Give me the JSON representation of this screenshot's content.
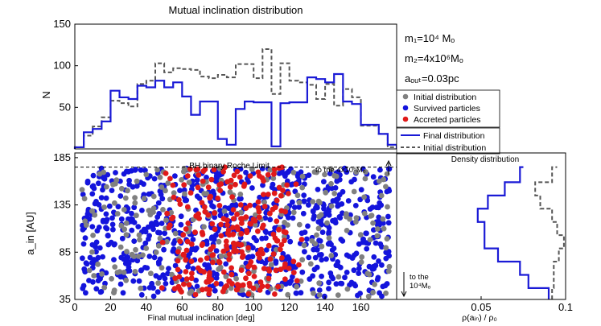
{
  "chart_data": [
    {
      "id": "hist",
      "type": "step",
      "title": "Mutual inclination distribution",
      "ylabel": "N",
      "xlim": [
        0,
        180
      ],
      "ylim": [
        0,
        150
      ],
      "yticks": [
        50,
        100,
        150
      ],
      "bin_width": 5,
      "series": [
        {
          "name": "Final distribution",
          "color": "#1a1ad6",
          "style": "solid",
          "values": [
            2,
            20,
            24,
            33,
            70,
            62,
            60,
            76,
            74,
            82,
            74,
            80,
            63,
            41,
            57,
            57,
            12,
            5,
            48,
            57,
            56,
            56,
            3,
            55,
            56,
            56,
            86,
            84,
            80,
            90,
            57,
            54,
            29,
            29,
            18,
            5
          ]
        },
        {
          "name": "Initial distribution",
          "color": "#555555",
          "style": "dashed",
          "values": [
            2,
            16,
            27,
            38,
            58,
            55,
            51,
            78,
            82,
            103,
            92,
            97,
            96,
            95,
            87,
            85,
            89,
            86,
            102,
            102,
            85,
            120,
            66,
            103,
            82,
            80,
            77,
            60,
            78,
            52,
            72,
            62,
            28,
            28,
            18,
            2
          ]
        }
      ]
    },
    {
      "id": "scatter",
      "type": "scatter",
      "xlabel": "Final mutual inclination [deg]",
      "ylabel": "a_in [AU]",
      "xlim": [
        0,
        180
      ],
      "ylim": [
        35,
        190
      ],
      "xticks": [
        0,
        20,
        40,
        60,
        80,
        100,
        120,
        140,
        160
      ],
      "yticks": [
        35,
        85,
        135,
        185
      ],
      "roche_limit_au": 175,
      "roche_label": "BH binary Roche Limit",
      "top_annotation": "to the 4x10⁶Mₒ",
      "bottom_annotation": [
        "to the",
        "10⁴Mₒ"
      ],
      "series": [
        {
          "name": "Initial distribution",
          "color": "#808080",
          "sample_size": 260
        },
        {
          "name": "Survived particles",
          "color": "#1414dc",
          "sample_size": 820
        },
        {
          "name": "Accreted particles",
          "color": "#e01a1a",
          "sample_size": 260
        }
      ]
    },
    {
      "id": "density",
      "type": "step-horizontal",
      "title": "Density distribution",
      "xlabel": "ρ(aᵢₙ) / ρ₀",
      "xlim": [
        0,
        0.1
      ],
      "xticks": [
        0.05,
        0.1
      ],
      "bins_au": [
        35,
        47,
        61,
        75,
        89,
        103,
        117,
        131,
        145,
        159,
        175
      ],
      "series": [
        {
          "name": "Final distribution",
          "color": "#1a1ad6",
          "style": "solid",
          "values": [
            0.09,
            0.078,
            0.073,
            0.06,
            0.052,
            0.052,
            0.048,
            0.054,
            0.064,
            0.073,
            0.075
          ]
        },
        {
          "name": "Initial distribution",
          "color": "#555555",
          "style": "dashed",
          "values": [
            0.092,
            0.093,
            0.093,
            0.096,
            0.099,
            0.095,
            0.092,
            0.085,
            0.082,
            0.092,
            0.095
          ]
        }
      ]
    }
  ],
  "params": [
    "m₁=10⁴ Mₒ",
    "m₂=4x10⁶Mₒ",
    "aₒᵤₜ=0.03pc"
  ],
  "legend_scatter": [
    "Initial distribution",
    "Survived particles",
    "Accreted particles"
  ],
  "legend_lines": [
    "Final distribution",
    "Initial distribution"
  ]
}
